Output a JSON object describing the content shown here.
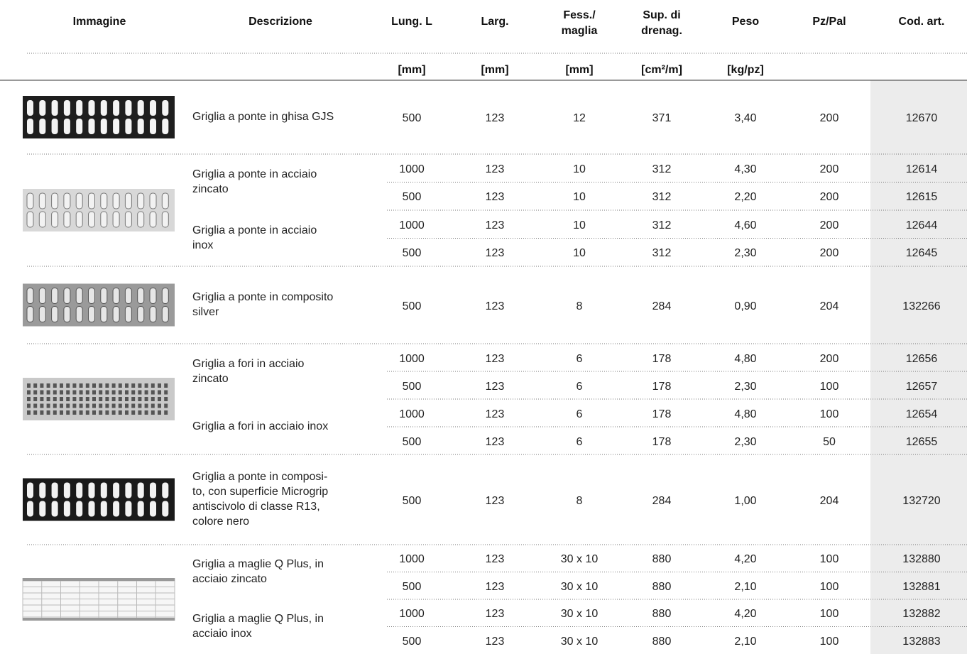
{
  "header": {
    "columns": [
      {
        "title": [
          "Immagine"
        ]
      },
      {
        "title": [
          "Descrizione"
        ]
      },
      {
        "title": [
          "Lung. L"
        ],
        "unit": "[mm]"
      },
      {
        "title": [
          "Larg."
        ],
        "unit": "[mm]"
      },
      {
        "title": [
          "Fess./",
          "maglia"
        ],
        "unit": "[mm]"
      },
      {
        "title": [
          "Sup. di",
          "drenag."
        ],
        "unit": "[cm²/m]"
      },
      {
        "title": [
          "Peso"
        ],
        "unit": "[kg/pz]"
      },
      {
        "title": [
          "Pz/Pal"
        ]
      },
      {
        "title": [
          "Cod. art."
        ]
      }
    ]
  },
  "groups": [
    {
      "descriptions": [
        {
          "lines": [
            "Griglia a ponte in ghisa GJS"
          ],
          "rows": [
            [
              "500",
              "123",
              "12",
              "371",
              "3,40",
              "200",
              "12670"
            ]
          ]
        }
      ]
    },
    {
      "descriptions": [
        {
          "lines": [
            "Griglia a ponte in acciaio",
            "zincato"
          ],
          "rows": [
            [
              "1000",
              "123",
              "10",
              "312",
              "4,30",
              "200",
              "12614"
            ],
            [
              "500",
              "123",
              "10",
              "312",
              "2,20",
              "200",
              "12615"
            ]
          ]
        },
        {
          "lines": [
            "Griglia a ponte in acciaio",
            "inox"
          ],
          "rows": [
            [
              "1000",
              "123",
              "10",
              "312",
              "4,60",
              "200",
              "12644"
            ],
            [
              "500",
              "123",
              "10",
              "312",
              "2,30",
              "200",
              "12645"
            ]
          ]
        }
      ]
    },
    {
      "descriptions": [
        {
          "lines": [
            "Griglia a ponte in composito",
            "silver"
          ],
          "rows": [
            [
              "500",
              "123",
              "8",
              "284",
              "0,90",
              "204",
              "132266"
            ]
          ]
        }
      ]
    },
    {
      "descriptions": [
        {
          "lines": [
            "Griglia a fori in acciaio",
            "zincato"
          ],
          "rows": [
            [
              "1000",
              "123",
              "6",
              "178",
              "4,80",
              "200",
              "12656"
            ],
            [
              "500",
              "123",
              "6",
              "178",
              "2,30",
              "100",
              "12657"
            ]
          ]
        },
        {
          "lines": [
            "Griglia a fori in acciaio inox"
          ],
          "rows": [
            [
              "1000",
              "123",
              "6",
              "178",
              "4,80",
              "100",
              "12654"
            ],
            [
              "500",
              "123",
              "6",
              "178",
              "2,30",
              "50",
              "12655"
            ]
          ]
        }
      ]
    },
    {
      "descriptions": [
        {
          "lines": [
            "Griglia a ponte in composi-",
            "to, con superficie Microgrip",
            "antiscivolo di classe R13,",
            "colore nero"
          ],
          "rows": [
            [
              "500",
              "123",
              "8",
              "284",
              "1,00",
              "204",
              "132720"
            ]
          ]
        }
      ]
    },
    {
      "descriptions": [
        {
          "lines": [
            "Griglia a maglie Q Plus, in",
            "acciaio zincato"
          ],
          "rows": [
            [
              "1000",
              "123",
              "30 x 10",
              "880",
              "4,20",
              "100",
              "132880"
            ],
            [
              "500",
              "123",
              "30 x 10",
              "880",
              "2,10",
              "100",
              "132881"
            ]
          ]
        },
        {
          "lines": [
            "Griglia a maglie Q Plus, in",
            "acciaio inox"
          ],
          "rows": [
            [
              "1000",
              "123",
              "30 x 10",
              "880",
              "4,20",
              "100",
              "132882"
            ],
            [
              "500",
              "123",
              "30 x 10",
              "880",
              "2,10",
              "100",
              "132883"
            ]
          ]
        }
      ]
    }
  ]
}
